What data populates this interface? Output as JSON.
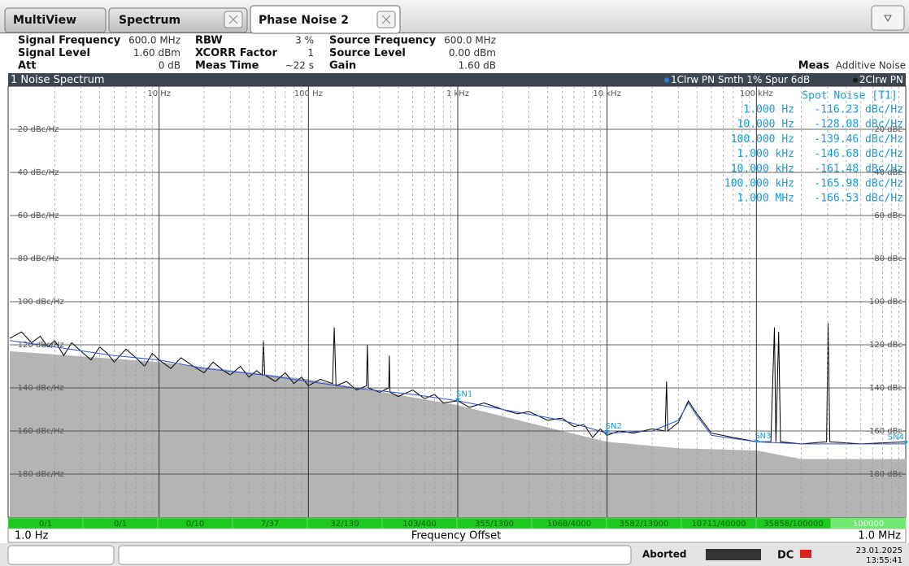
{
  "tabs": [
    "MultiView",
    "Spectrum",
    "Phase Noise 2"
  ],
  "settings": [
    [
      [
        "Signal Frequency",
        "600.0 MHz"
      ],
      [
        "RBW",
        "3 %"
      ],
      [
        "Source Frequency",
        "600.0 MHz"
      ]
    ],
    [
      [
        "Signal Level",
        "1.60 dBm"
      ],
      [
        "XCORR Factor",
        "1"
      ],
      [
        "Source Level",
        "0.00 dBm"
      ]
    ],
    [
      [
        "Att",
        "0 dB"
      ],
      [
        "Meas Time",
        "∼22 s"
      ],
      [
        "Gain",
        "1.60 dB"
      ]
    ]
  ],
  "meas": {
    "label": "Meas",
    "value": "Additive Noise"
  },
  "chart_data": {
    "type": "line",
    "title": "1 Noise Spectrum",
    "trace_info": [
      "1Clrw PN Smth 1% Spur 6dB",
      "2Clrw PN"
    ],
    "xlabel": "Frequency Offset",
    "start_label": "1.0 Hz",
    "stop_label": "1.0 MHz",
    "log_x": true,
    "grid": true,
    "xlim": [
      1,
      1000000
    ],
    "xticks": [
      {
        "value": 10,
        "label": "10 Hz"
      },
      {
        "value": 100,
        "label": "100 Hz"
      },
      {
        "value": 1000,
        "label": "1 kHz"
      },
      {
        "value": 10000,
        "label": "10 kHz"
      },
      {
        "value": 100000,
        "label": "100 kHz"
      }
    ],
    "ylim": [
      -200,
      0
    ],
    "yticks": [
      {
        "value": -20,
        "label": "-20 dBc/Hz"
      },
      {
        "value": -40,
        "label": "-40 dBc/Hz"
      },
      {
        "value": -60,
        "label": "-60 dBc/Hz"
      },
      {
        "value": -80,
        "label": "-80 dBc/Hz"
      },
      {
        "value": -100,
        "label": "-100 dBc/Hz"
      },
      {
        "value": -120,
        "label": "-120 dBc/Hz"
      },
      {
        "value": -140,
        "label": "-140 dBc/Hz"
      },
      {
        "value": -160,
        "label": "-160 dBc/Hz"
      },
      {
        "value": -180,
        "label": "-180 dBc/Hz"
      }
    ],
    "y2lim": [
      -200,
      0
    ],
    "y2ticks": [
      {
        "value": -20,
        "label": "-20 dBc"
      },
      {
        "value": -40,
        "label": "-40 dBc"
      },
      {
        "value": -60,
        "label": "-60 dBc"
      },
      {
        "value": -80,
        "label": "-80 dBc"
      },
      {
        "value": -100,
        "label": "-100 dBc"
      },
      {
        "value": -120,
        "label": "-120 dBc"
      },
      {
        "value": -140,
        "label": "-140 dBc"
      },
      {
        "value": -160,
        "label": "-160 dBc"
      },
      {
        "value": -180,
        "label": "-180 dBc"
      }
    ],
    "series": [
      {
        "color": "#b4b4b4",
        "fill": true,
        "x": [
          1,
          10,
          100,
          1000,
          5000,
          10000,
          30000,
          100000,
          200000,
          1000000
        ],
        "values": [
          -123,
          -128,
          -136,
          -148,
          -160,
          -165,
          -168,
          -169,
          -173,
          -173
        ]
      },
      {
        "color": "#000000",
        "x": [
          1,
          1.2,
          1.4,
          1.6,
          1.8,
          2,
          2.3,
          2.6,
          3,
          3.5,
          4,
          4.5,
          5,
          6,
          7,
          8,
          9,
          10,
          12,
          14,
          17,
          20,
          23,
          27,
          30,
          35,
          40,
          45,
          49,
          50,
          51,
          60,
          70,
          80,
          90,
          100,
          120,
          145,
          149,
          153,
          180,
          210,
          245,
          248,
          252,
          300,
          345,
          348,
          352,
          400,
          500,
          600,
          700,
          800,
          1000,
          1200,
          1500,
          2000,
          2500,
          3000,
          4000,
          5000,
          6000,
          7000,
          8000,
          9000,
          10000,
          12000,
          15000,
          20000,
          24500,
          25000,
          25500,
          30000,
          35000,
          40000,
          50000,
          70000,
          100000,
          125000,
          132000,
          135000,
          141000,
          145000,
          200000,
          295000,
          302000,
          310000,
          500000,
          1000000
        ],
        "values": [
          -117,
          -114,
          -119,
          -116,
          -121,
          -118,
          -125,
          -119,
          -123,
          -127,
          -121,
          -124,
          -128,
          -122,
          -126,
          -130,
          -124,
          -127,
          -131,
          -126,
          -130,
          -133,
          -128,
          -132,
          -134,
          -130,
          -135,
          -132,
          -134,
          -118,
          -134,
          -137,
          -133,
          -138,
          -135,
          -139,
          -136,
          -138,
          -112,
          -139,
          -137,
          -141,
          -139,
          -120,
          -140,
          -142,
          -140,
          -125,
          -142,
          -144,
          -141,
          -145,
          -143,
          -147,
          -146,
          -149,
          -147,
          -150,
          -152,
          -151,
          -155,
          -154,
          -158,
          -157,
          -163,
          -159,
          -162,
          -160,
          -161,
          -159,
          -160,
          -137,
          -160,
          -156,
          -146,
          -152,
          -161,
          -163,
          -165,
          -165,
          -112,
          -165,
          -114,
          -165,
          -166,
          -165,
          -110,
          -165,
          -166,
          -165
        ]
      },
      {
        "color": "#2a52d8",
        "x": [
          1,
          2,
          5,
          10,
          20,
          50,
          100,
          200,
          500,
          1000,
          2000,
          5000,
          10000,
          20000,
          30000,
          35000,
          40000,
          50000,
          100000,
          200000,
          500000,
          1000000
        ],
        "values": [
          -118,
          -121,
          -125,
          -127,
          -131,
          -134,
          -137,
          -140,
          -143,
          -146,
          -150,
          -155,
          -161,
          -160,
          -155,
          -147,
          -153,
          -162,
          -165,
          -166,
          -166,
          -166
        ]
      }
    ],
    "markers": [
      {
        "label": "SN1",
        "x": 1000,
        "y": -146.68
      },
      {
        "label": "SN2",
        "x": 10000,
        "y": -161.48
      },
      {
        "label": "SN3",
        "x": 100000,
        "y": -165.98
      },
      {
        "label": "SN4",
        "x": 1000000,
        "y": -166.53
      }
    ],
    "spot_noise": {
      "title": "Spot Noise [T1]",
      "rows": [
        [
          "1.000 Hz",
          "-116.23 dBc/Hz"
        ],
        [
          "10.000 Hz",
          "-128.08 dBc/Hz"
        ],
        [
          "100.000 Hz",
          "-139.46 dBc/Hz"
        ],
        [
          "1.000 kHz",
          "-146.68 dBc/Hz"
        ],
        [
          "10.000 kHz",
          "-161.48 dBc/Hz"
        ],
        [
          "100.000 kHz",
          "-165.98 dBc/Hz"
        ],
        [
          "1.000 MHz",
          "-166.53 dBc/Hz"
        ]
      ]
    }
  },
  "sweep_progress": [
    "0/1",
    "0/1",
    "0/10",
    "7/37",
    "32/130",
    "103/400",
    "355/1300",
    "1068/4000",
    "3582/13000",
    "10711/40000",
    "35858/100000",
    "100000"
  ],
  "status": {
    "state": "Aborted",
    "dc": "DC",
    "date": "23.01.2025",
    "time": "13:55:41"
  }
}
